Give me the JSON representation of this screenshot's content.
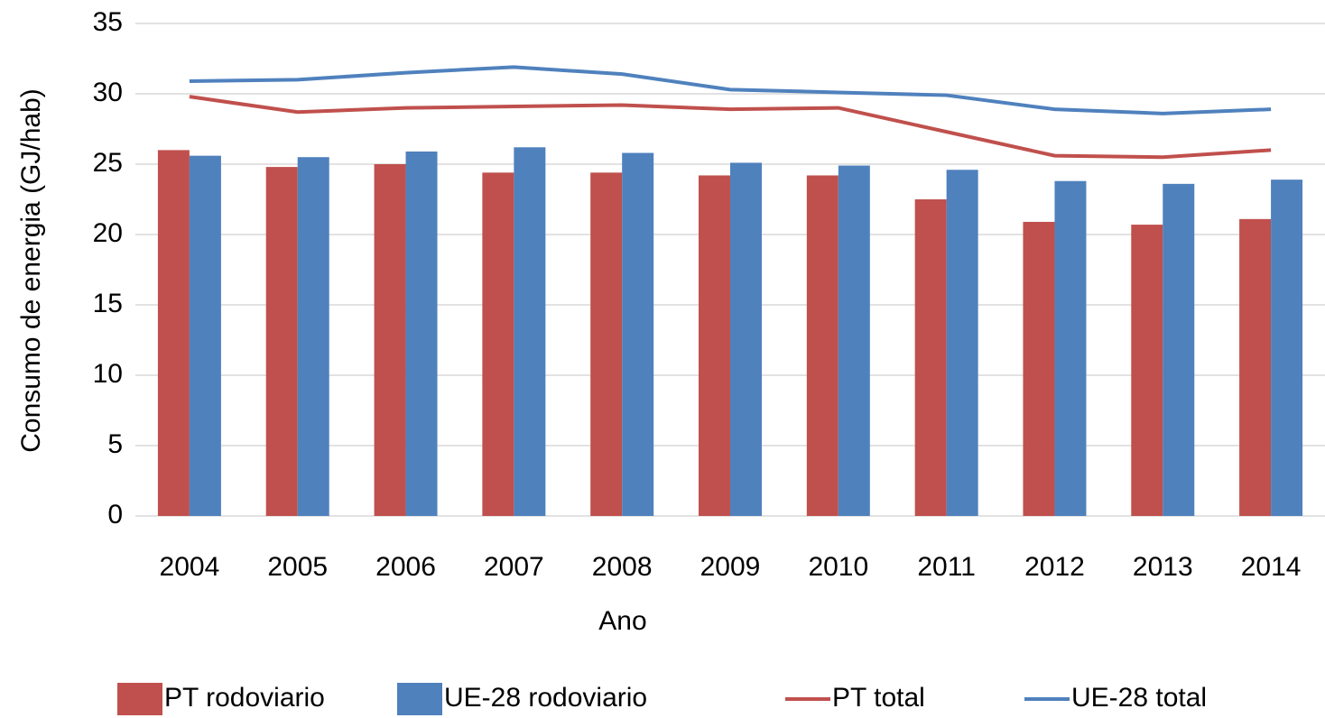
{
  "chart_data": {
    "type": "bar",
    "xlabel": "Ano",
    "ylabel": "Consumo de energia (GJ/hab)",
    "categories": [
      "2004",
      "2005",
      "2006",
      "2007",
      "2008",
      "2009",
      "2010",
      "2011",
      "2012",
      "2013",
      "2014"
    ],
    "series": [
      {
        "name": "PT rodoviario",
        "type": "bar",
        "color": "#c0504d",
        "values": [
          26.0,
          24.8,
          25.0,
          24.4,
          24.4,
          24.2,
          24.2,
          22.5,
          20.9,
          20.7,
          21.1
        ]
      },
      {
        "name": "UE-28 rodoviario",
        "type": "bar",
        "color": "#4f81bd",
        "values": [
          25.6,
          25.5,
          25.9,
          26.2,
          25.8,
          25.1,
          24.9,
          24.6,
          23.8,
          23.6,
          23.9
        ]
      },
      {
        "name": "PT total",
        "type": "line",
        "color": "#c0504d",
        "values": [
          29.8,
          28.7,
          29.0,
          29.1,
          29.2,
          28.9,
          29.0,
          27.3,
          25.6,
          25.5,
          26.0
        ]
      },
      {
        "name": "UE-28 total",
        "type": "line",
        "color": "#4f81bd",
        "values": [
          30.9,
          31.0,
          31.5,
          31.9,
          31.4,
          30.3,
          30.1,
          29.9,
          28.9,
          28.6,
          28.9
        ]
      }
    ],
    "ylim": [
      0,
      35
    ],
    "yticks": [
      0,
      5,
      10,
      15,
      20,
      25,
      30,
      35
    ],
    "grid": true,
    "legend": "bottom"
  }
}
